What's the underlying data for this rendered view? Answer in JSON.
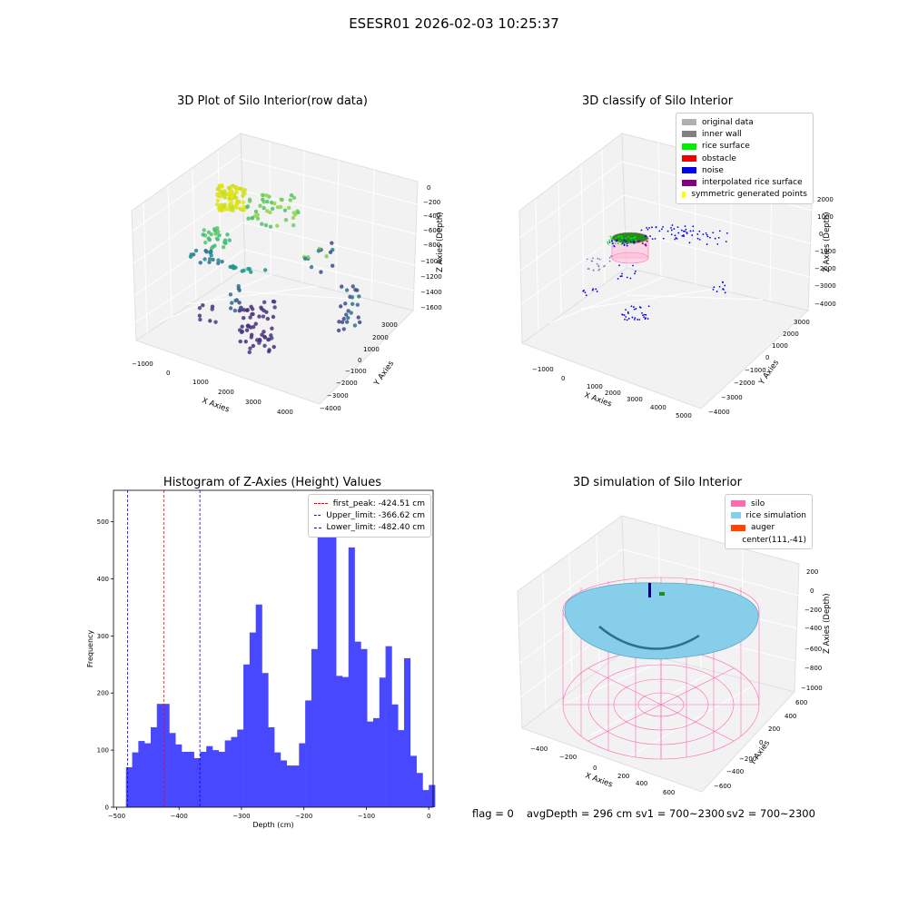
{
  "suptitle": "ESESR01 2026-02-03 10:25:37",
  "panel1": {
    "title": "3D Plot of Silo Interior(row data)",
    "xlabel": "X Axies",
    "ylabel": "Y Axies",
    "zlabel": "Z Axies (Depth)",
    "xticks": [
      "−1000",
      "0",
      "1000",
      "2000",
      "3000",
      "4000"
    ],
    "yticks": [
      "3000",
      "2000",
      "1000",
      "0",
      "−1000",
      "−2000",
      "−3000",
      "−4000"
    ],
    "zticks": [
      "0",
      "−200",
      "−400",
      "−600",
      "−800",
      "−1000",
      "−1200",
      "−1400",
      "−1600"
    ]
  },
  "panel2": {
    "title": "3D classify of Silo Interior",
    "xlabel": "X Axies",
    "ylabel": "Y Axies",
    "zlabel": "Z Axies (Depth)",
    "xticks": [
      "−1000",
      "0",
      "1000",
      "2000",
      "3000",
      "4000",
      "5000"
    ],
    "yticks": [
      "3000",
      "2000",
      "1000",
      "0",
      "−1000",
      "−2000",
      "−3000",
      "−4000"
    ],
    "zticks": [
      "2000",
      "1000",
      "0",
      "−1000",
      "−2000",
      "−3000",
      "−4000"
    ],
    "legend": [
      {
        "label": "original data",
        "color": "#b0b0b0"
      },
      {
        "label": "inner wall",
        "color": "#808080"
      },
      {
        "label": "rice surface",
        "color": "#00ee00"
      },
      {
        "label": "obstacle",
        "color": "#ee0000"
      },
      {
        "label": "noise",
        "color": "#0000ee"
      },
      {
        "label": "interpolated rice surface",
        "color": "#800080"
      },
      {
        "label": "symmetric generated points",
        "color": "#ffff00"
      }
    ]
  },
  "panel3": {
    "title": "Histogram of Z-Axies (Height) Values",
    "legend": [
      {
        "label": "first_peak: -424.51 cm",
        "color": "#ff0000"
      },
      {
        "label": "Upper_limit: -366.62 cm",
        "color": "#0000ff"
      },
      {
        "label": "Lower_limit: -482.40 cm",
        "color": "#0000ff"
      }
    ]
  },
  "panel4": {
    "title": "3D simulation of Silo Interior",
    "xlabel": "X Axies",
    "ylabel": "Y Axies",
    "zlabel": "Z Axies (Depth)",
    "xticks": [
      "−400",
      "−200",
      "0",
      "200",
      "400",
      "600"
    ],
    "yticks": [
      "600",
      "400",
      "200",
      "0",
      "−200",
      "−400",
      "−600"
    ],
    "zticks": [
      "200",
      "0",
      "−200",
      "−400",
      "−600",
      "−800",
      "−1000"
    ],
    "legend": [
      {
        "label": "silo",
        "color": "#ff69b4"
      },
      {
        "label": "rice simulation",
        "color": "#87ceeb"
      },
      {
        "label": "auger",
        "color": "#ff4500"
      },
      {
        "label": "center(111,-41)",
        "color": ""
      }
    ]
  },
  "status": {
    "flag": "flag = 0",
    "avg": "avgDepth = 296 cm",
    "sv1": "sv1 = 700~2300",
    "sv2": "sv2 = 700~2300"
  },
  "chart_data": [
    {
      "type": "scatter",
      "panel": "panel1",
      "note3d": true
    },
    {
      "type": "scatter",
      "panel": "panel2",
      "note3d": true
    },
    {
      "type": "bar",
      "panel": "panel3",
      "title": "Histogram of Z-Axies (Height) Values",
      "xlabel": "Depth (cm)",
      "ylabel": "Frequency",
      "xlim": [
        -505,
        7
      ],
      "ylim": [
        0,
        555
      ],
      "xticks": [
        -500,
        -400,
        -300,
        -200,
        -100,
        0
      ],
      "yticks": [
        0,
        100,
        200,
        300,
        400,
        500
      ],
      "bin_start": -485,
      "bin_width": 9.9,
      "values": [
        70,
        96,
        116,
        112,
        140,
        181,
        181,
        130,
        110,
        97,
        97,
        86,
        97,
        107,
        100,
        97,
        117,
        123,
        136,
        250,
        306,
        355,
        235,
        140,
        96,
        82,
        73,
        73,
        112,
        187,
        277,
        478,
        480,
        487,
        230,
        228,
        455,
        290,
        277,
        150,
        156,
        227,
        282,
        180,
        135,
        261,
        90,
        60,
        30,
        39
      ],
      "vlines": [
        {
          "name": "first_peak: -424.51 cm",
          "x": -424.51,
          "color": "#ff0000"
        },
        {
          "name": "Upper_limit: -366.62 cm",
          "x": -366.62,
          "color": "#0000ff"
        },
        {
          "name": "Lower_limit: -482.40 cm",
          "x": -482.4,
          "color": "#0000ff"
        }
      ],
      "bar_color": "#4848ff",
      "legend": "top-right"
    },
    {
      "type": "3d-surface",
      "panel": "panel4",
      "note3d": true
    }
  ]
}
